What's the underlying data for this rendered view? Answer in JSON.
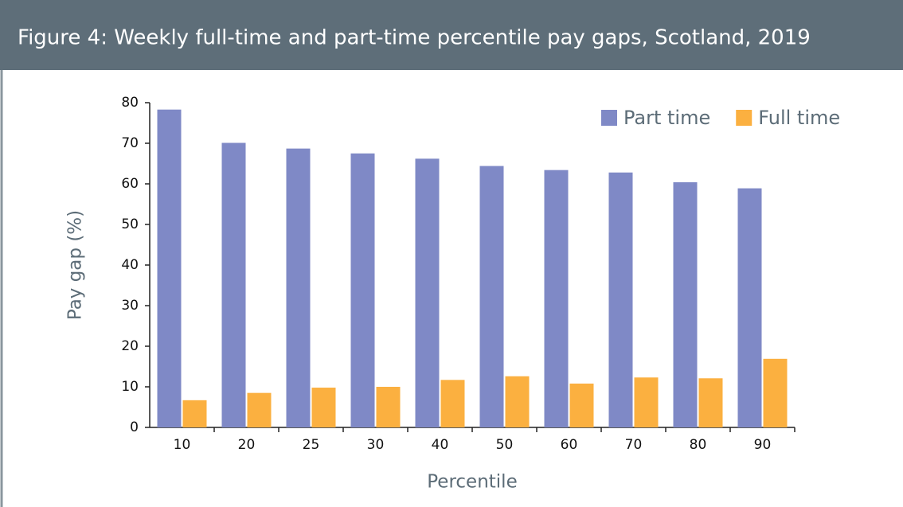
{
  "chart_data": {
    "type": "bar",
    "title": "Figure 4: Weekly full-time and part-time percentile pay gaps, Scotland, 2019",
    "x_label": "Percentile",
    "y_label": "Pay gap (%)",
    "categories": [
      "10",
      "20",
      "25",
      "30",
      "40",
      "50",
      "60",
      "70",
      "80",
      "90"
    ],
    "series": [
      {
        "name": "Part time",
        "color": "#7f89c6",
        "values": [
          78.3,
          70.1,
          68.7,
          67.5,
          66.2,
          64.4,
          63.4,
          62.8,
          60.4,
          58.9
        ]
      },
      {
        "name": "Full time",
        "color": "#fbb040",
        "values": [
          6.7,
          8.5,
          9.8,
          10.0,
          11.7,
          12.6,
          10.8,
          12.3,
          12.1,
          16.9
        ]
      }
    ],
    "ylim": [
      0,
      80
    ],
    "yticks": [
      0,
      10,
      20,
      30,
      40,
      50,
      60,
      70,
      80
    ],
    "grid": false,
    "legend": "top-right"
  }
}
